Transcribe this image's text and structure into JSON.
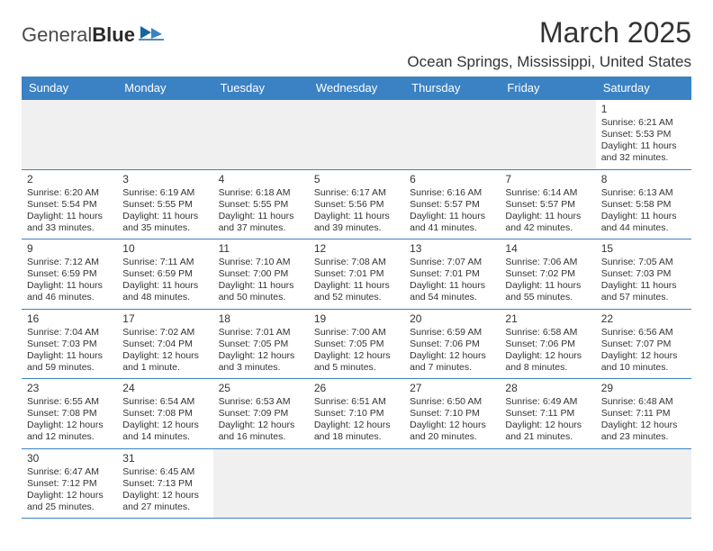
{
  "logo": {
    "word1": "General",
    "word2": "Blue"
  },
  "header": {
    "month_title": "March 2025",
    "location": "Ocean Springs, Mississippi, United States"
  },
  "calendar": {
    "header_bg": "#3b82c4",
    "header_fg": "#ffffff",
    "border_color": "#3b82c4",
    "empty_bg": "#f0f0f0",
    "text_color": "#333333",
    "day_names": [
      "Sunday",
      "Monday",
      "Tuesday",
      "Wednesday",
      "Thursday",
      "Friday",
      "Saturday"
    ],
    "weeks": [
      [
        null,
        null,
        null,
        null,
        null,
        null,
        {
          "n": "1",
          "sr": "Sunrise: 6:21 AM",
          "ss": "Sunset: 5:53 PM",
          "d1": "Daylight: 11 hours",
          "d2": "and 32 minutes."
        }
      ],
      [
        {
          "n": "2",
          "sr": "Sunrise: 6:20 AM",
          "ss": "Sunset: 5:54 PM",
          "d1": "Daylight: 11 hours",
          "d2": "and 33 minutes."
        },
        {
          "n": "3",
          "sr": "Sunrise: 6:19 AM",
          "ss": "Sunset: 5:55 PM",
          "d1": "Daylight: 11 hours",
          "d2": "and 35 minutes."
        },
        {
          "n": "4",
          "sr": "Sunrise: 6:18 AM",
          "ss": "Sunset: 5:55 PM",
          "d1": "Daylight: 11 hours",
          "d2": "and 37 minutes."
        },
        {
          "n": "5",
          "sr": "Sunrise: 6:17 AM",
          "ss": "Sunset: 5:56 PM",
          "d1": "Daylight: 11 hours",
          "d2": "and 39 minutes."
        },
        {
          "n": "6",
          "sr": "Sunrise: 6:16 AM",
          "ss": "Sunset: 5:57 PM",
          "d1": "Daylight: 11 hours",
          "d2": "and 41 minutes."
        },
        {
          "n": "7",
          "sr": "Sunrise: 6:14 AM",
          "ss": "Sunset: 5:57 PM",
          "d1": "Daylight: 11 hours",
          "d2": "and 42 minutes."
        },
        {
          "n": "8",
          "sr": "Sunrise: 6:13 AM",
          "ss": "Sunset: 5:58 PM",
          "d1": "Daylight: 11 hours",
          "d2": "and 44 minutes."
        }
      ],
      [
        {
          "n": "9",
          "sr": "Sunrise: 7:12 AM",
          "ss": "Sunset: 6:59 PM",
          "d1": "Daylight: 11 hours",
          "d2": "and 46 minutes."
        },
        {
          "n": "10",
          "sr": "Sunrise: 7:11 AM",
          "ss": "Sunset: 6:59 PM",
          "d1": "Daylight: 11 hours",
          "d2": "and 48 minutes."
        },
        {
          "n": "11",
          "sr": "Sunrise: 7:10 AM",
          "ss": "Sunset: 7:00 PM",
          "d1": "Daylight: 11 hours",
          "d2": "and 50 minutes."
        },
        {
          "n": "12",
          "sr": "Sunrise: 7:08 AM",
          "ss": "Sunset: 7:01 PM",
          "d1": "Daylight: 11 hours",
          "d2": "and 52 minutes."
        },
        {
          "n": "13",
          "sr": "Sunrise: 7:07 AM",
          "ss": "Sunset: 7:01 PM",
          "d1": "Daylight: 11 hours",
          "d2": "and 54 minutes."
        },
        {
          "n": "14",
          "sr": "Sunrise: 7:06 AM",
          "ss": "Sunset: 7:02 PM",
          "d1": "Daylight: 11 hours",
          "d2": "and 55 minutes."
        },
        {
          "n": "15",
          "sr": "Sunrise: 7:05 AM",
          "ss": "Sunset: 7:03 PM",
          "d1": "Daylight: 11 hours",
          "d2": "and 57 minutes."
        }
      ],
      [
        {
          "n": "16",
          "sr": "Sunrise: 7:04 AM",
          "ss": "Sunset: 7:03 PM",
          "d1": "Daylight: 11 hours",
          "d2": "and 59 minutes."
        },
        {
          "n": "17",
          "sr": "Sunrise: 7:02 AM",
          "ss": "Sunset: 7:04 PM",
          "d1": "Daylight: 12 hours",
          "d2": "and 1 minute."
        },
        {
          "n": "18",
          "sr": "Sunrise: 7:01 AM",
          "ss": "Sunset: 7:05 PM",
          "d1": "Daylight: 12 hours",
          "d2": "and 3 minutes."
        },
        {
          "n": "19",
          "sr": "Sunrise: 7:00 AM",
          "ss": "Sunset: 7:05 PM",
          "d1": "Daylight: 12 hours",
          "d2": "and 5 minutes."
        },
        {
          "n": "20",
          "sr": "Sunrise: 6:59 AM",
          "ss": "Sunset: 7:06 PM",
          "d1": "Daylight: 12 hours",
          "d2": "and 7 minutes."
        },
        {
          "n": "21",
          "sr": "Sunrise: 6:58 AM",
          "ss": "Sunset: 7:06 PM",
          "d1": "Daylight: 12 hours",
          "d2": "and 8 minutes."
        },
        {
          "n": "22",
          "sr": "Sunrise: 6:56 AM",
          "ss": "Sunset: 7:07 PM",
          "d1": "Daylight: 12 hours",
          "d2": "and 10 minutes."
        }
      ],
      [
        {
          "n": "23",
          "sr": "Sunrise: 6:55 AM",
          "ss": "Sunset: 7:08 PM",
          "d1": "Daylight: 12 hours",
          "d2": "and 12 minutes."
        },
        {
          "n": "24",
          "sr": "Sunrise: 6:54 AM",
          "ss": "Sunset: 7:08 PM",
          "d1": "Daylight: 12 hours",
          "d2": "and 14 minutes."
        },
        {
          "n": "25",
          "sr": "Sunrise: 6:53 AM",
          "ss": "Sunset: 7:09 PM",
          "d1": "Daylight: 12 hours",
          "d2": "and 16 minutes."
        },
        {
          "n": "26",
          "sr": "Sunrise: 6:51 AM",
          "ss": "Sunset: 7:10 PM",
          "d1": "Daylight: 12 hours",
          "d2": "and 18 minutes."
        },
        {
          "n": "27",
          "sr": "Sunrise: 6:50 AM",
          "ss": "Sunset: 7:10 PM",
          "d1": "Daylight: 12 hours",
          "d2": "and 20 minutes."
        },
        {
          "n": "28",
          "sr": "Sunrise: 6:49 AM",
          "ss": "Sunset: 7:11 PM",
          "d1": "Daylight: 12 hours",
          "d2": "and 21 minutes."
        },
        {
          "n": "29",
          "sr": "Sunrise: 6:48 AM",
          "ss": "Sunset: 7:11 PM",
          "d1": "Daylight: 12 hours",
          "d2": "and 23 minutes."
        }
      ],
      [
        {
          "n": "30",
          "sr": "Sunrise: 6:47 AM",
          "ss": "Sunset: 7:12 PM",
          "d1": "Daylight: 12 hours",
          "d2": "and 25 minutes."
        },
        {
          "n": "31",
          "sr": "Sunrise: 6:45 AM",
          "ss": "Sunset: 7:13 PM",
          "d1": "Daylight: 12 hours",
          "d2": "and 27 minutes."
        },
        null,
        null,
        null,
        null,
        null
      ]
    ]
  }
}
